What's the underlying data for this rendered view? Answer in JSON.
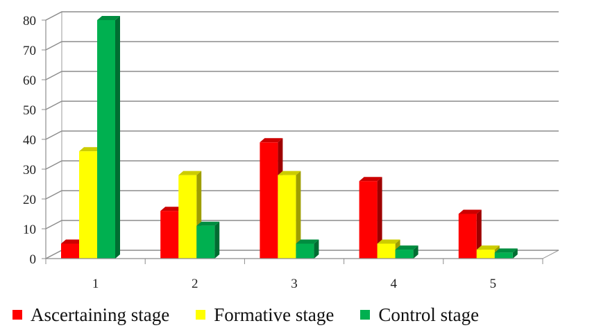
{
  "chart_data": {
    "type": "bar",
    "title": "",
    "xlabel": "",
    "ylabel": "",
    "categories": [
      "1",
      "2",
      "3",
      "4",
      "5"
    ],
    "ylim": [
      0,
      80
    ],
    "yticks": [
      "0",
      "10",
      "20",
      "30",
      "40",
      "50",
      "60",
      "70",
      "80"
    ],
    "grid": true,
    "legend_position": "bottom",
    "series": [
      {
        "name": "Ascertaining stage",
        "color": "#ff0000",
        "values": [
          5,
          16,
          39,
          26,
          15
        ]
      },
      {
        "name": "Formative stage",
        "color": "#ffff00",
        "values": [
          36,
          28,
          28,
          5,
          3
        ]
      },
      {
        "name": "Control stage",
        "color": "#00b050",
        "values": [
          80,
          11,
          5,
          3,
          2
        ]
      }
    ]
  }
}
